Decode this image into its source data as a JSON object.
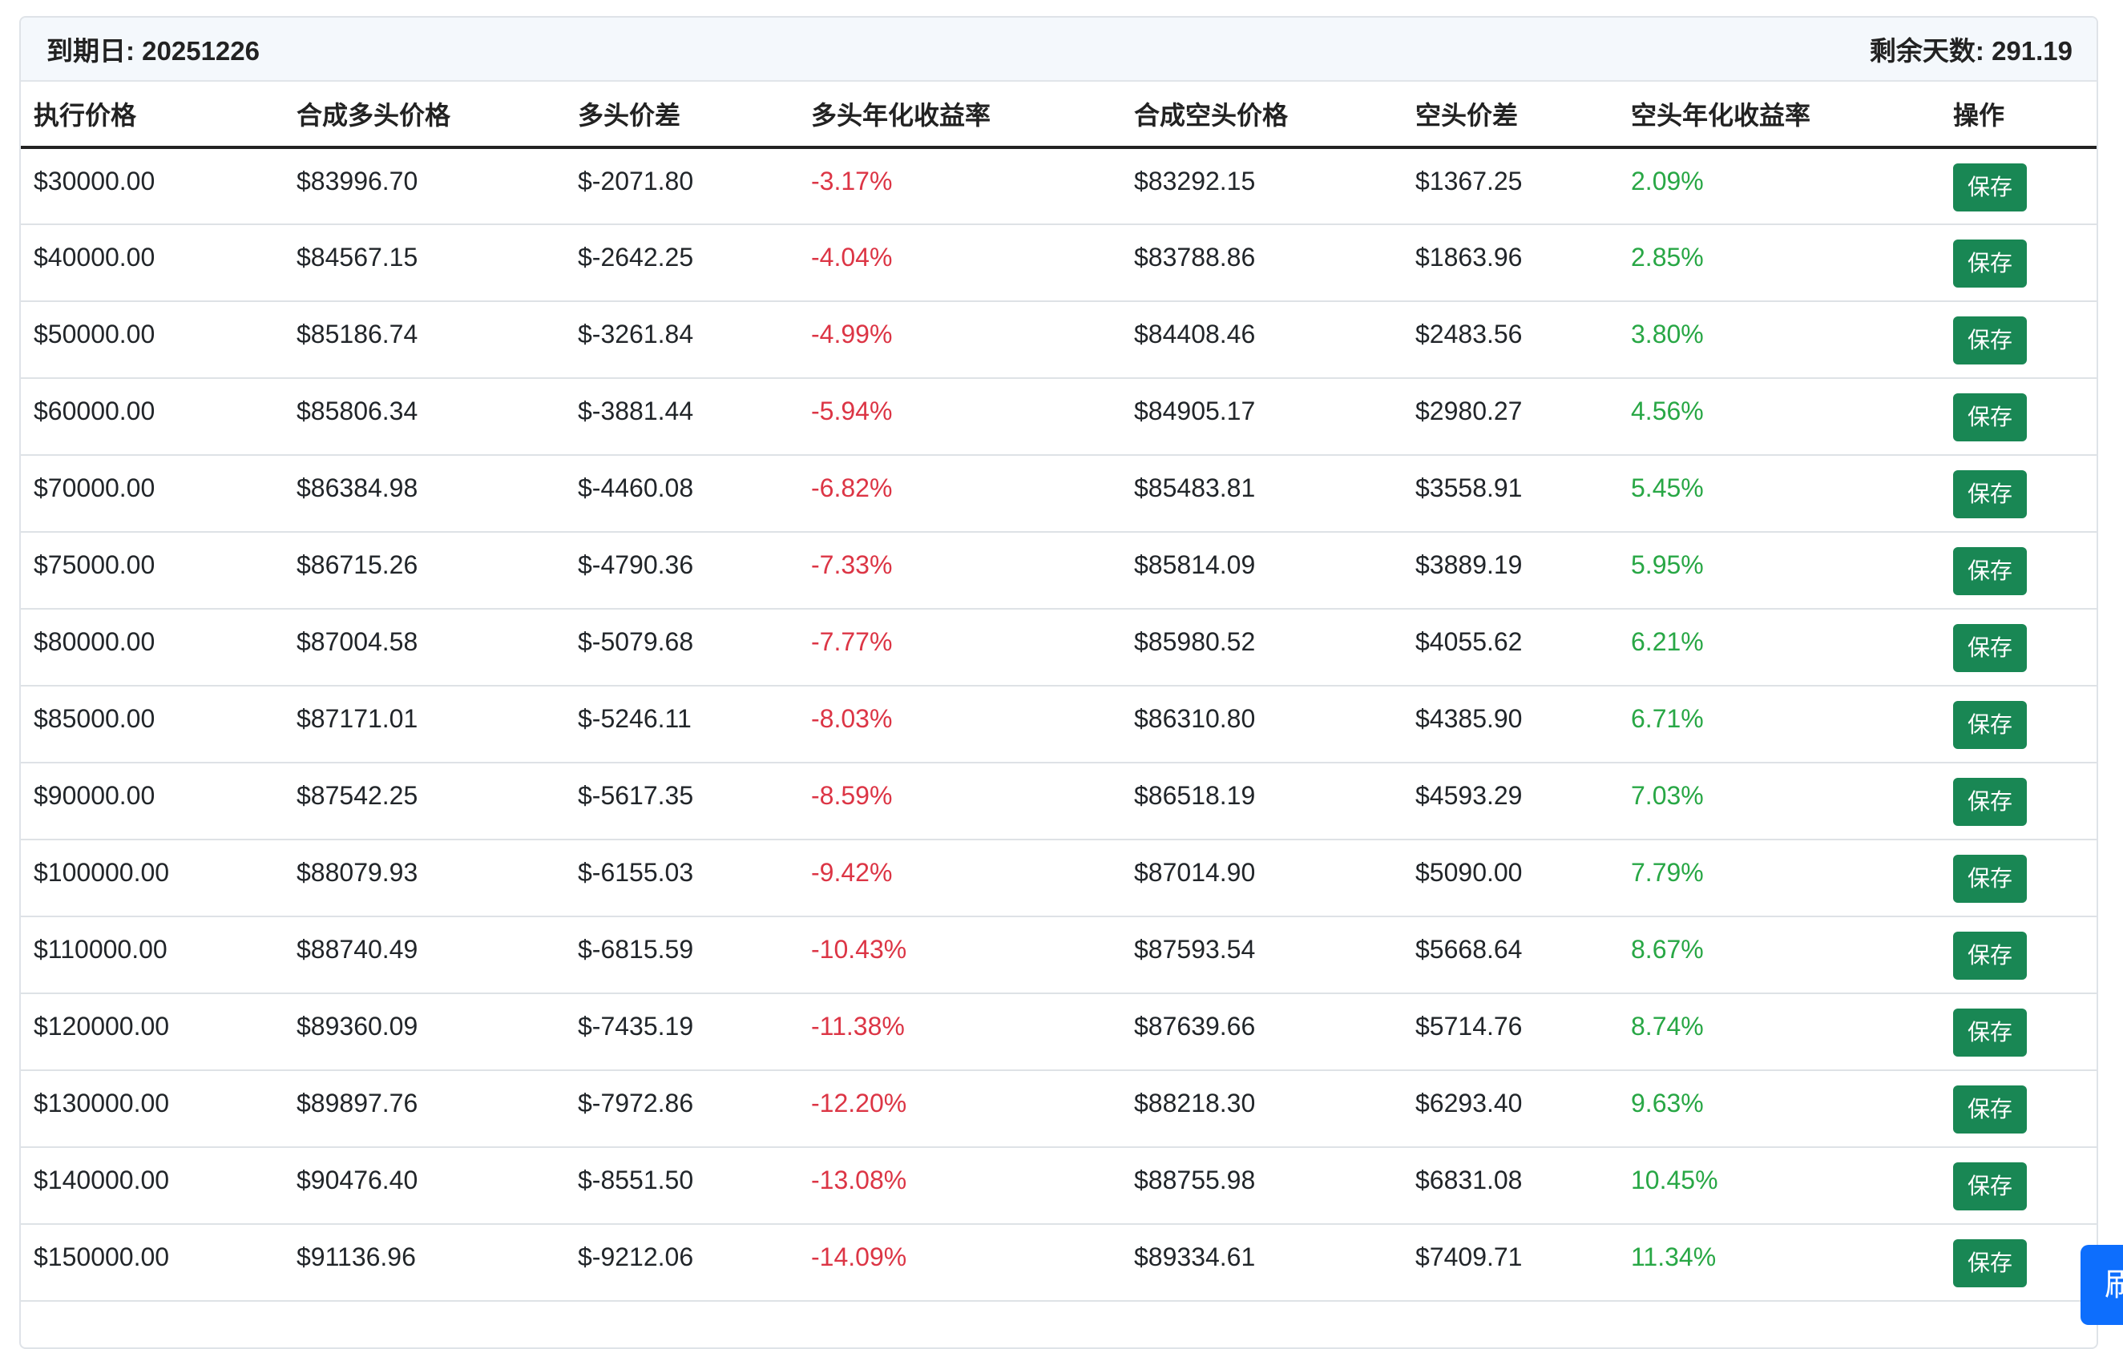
{
  "header": {
    "expiry": "到期日: 20251226",
    "days_left": "剩余天数: 291.19"
  },
  "columns": [
    "执行价格",
    "合成多头价格",
    "多头价差",
    "多头年化收益率",
    "合成空头价格",
    "空头价差",
    "空头年化收益率",
    "操作"
  ],
  "rows": [
    {
      "strike": "$30000.00",
      "long_price": "$83996.70",
      "long_spread": "$-2071.80",
      "long_yield": "-3.17%",
      "short_price": "$83292.15",
      "short_spread": "$1367.25",
      "short_yield": "2.09%",
      "action": "保存"
    },
    {
      "strike": "$40000.00",
      "long_price": "$84567.15",
      "long_spread": "$-2642.25",
      "long_yield": "-4.04%",
      "short_price": "$83788.86",
      "short_spread": "$1863.96",
      "short_yield": "2.85%",
      "action": "保存"
    },
    {
      "strike": "$50000.00",
      "long_price": "$85186.74",
      "long_spread": "$-3261.84",
      "long_yield": "-4.99%",
      "short_price": "$84408.46",
      "short_spread": "$2483.56",
      "short_yield": "3.80%",
      "action": "保存"
    },
    {
      "strike": "$60000.00",
      "long_price": "$85806.34",
      "long_spread": "$-3881.44",
      "long_yield": "-5.94%",
      "short_price": "$84905.17",
      "short_spread": "$2980.27",
      "short_yield": "4.56%",
      "action": "保存"
    },
    {
      "strike": "$70000.00",
      "long_price": "$86384.98",
      "long_spread": "$-4460.08",
      "long_yield": "-6.82%",
      "short_price": "$85483.81",
      "short_spread": "$3558.91",
      "short_yield": "5.45%",
      "action": "保存"
    },
    {
      "strike": "$75000.00",
      "long_price": "$86715.26",
      "long_spread": "$-4790.36",
      "long_yield": "-7.33%",
      "short_price": "$85814.09",
      "short_spread": "$3889.19",
      "short_yield": "5.95%",
      "action": "保存"
    },
    {
      "strike": "$80000.00",
      "long_price": "$87004.58",
      "long_spread": "$-5079.68",
      "long_yield": "-7.77%",
      "short_price": "$85980.52",
      "short_spread": "$4055.62",
      "short_yield": "6.21%",
      "action": "保存"
    },
    {
      "strike": "$85000.00",
      "long_price": "$87171.01",
      "long_spread": "$-5246.11",
      "long_yield": "-8.03%",
      "short_price": "$86310.80",
      "short_spread": "$4385.90",
      "short_yield": "6.71%",
      "action": "保存"
    },
    {
      "strike": "$90000.00",
      "long_price": "$87542.25",
      "long_spread": "$-5617.35",
      "long_yield": "-8.59%",
      "short_price": "$86518.19",
      "short_spread": "$4593.29",
      "short_yield": "7.03%",
      "action": "保存"
    },
    {
      "strike": "$100000.00",
      "long_price": "$88079.93",
      "long_spread": "$-6155.03",
      "long_yield": "-9.42%",
      "short_price": "$87014.90",
      "short_spread": "$5090.00",
      "short_yield": "7.79%",
      "action": "保存"
    },
    {
      "strike": "$110000.00",
      "long_price": "$88740.49",
      "long_spread": "$-6815.59",
      "long_yield": "-10.43%",
      "short_price": "$87593.54",
      "short_spread": "$5668.64",
      "short_yield": "8.67%",
      "action": "保存"
    },
    {
      "strike": "$120000.00",
      "long_price": "$89360.09",
      "long_spread": "$-7435.19",
      "long_yield": "-11.38%",
      "short_price": "$87639.66",
      "short_spread": "$5714.76",
      "short_yield": "8.74%",
      "action": "保存"
    },
    {
      "strike": "$130000.00",
      "long_price": "$89897.76",
      "long_spread": "$-7972.86",
      "long_yield": "-12.20%",
      "short_price": "$88218.30",
      "short_spread": "$6293.40",
      "short_yield": "9.63%",
      "action": "保存"
    },
    {
      "strike": "$140000.00",
      "long_price": "$90476.40",
      "long_spread": "$-8551.50",
      "long_yield": "-13.08%",
      "short_price": "$88755.98",
      "short_spread": "$6831.08",
      "short_yield": "10.45%",
      "action": "保存"
    },
    {
      "strike": "$150000.00",
      "long_price": "$91136.96",
      "long_spread": "$-9212.06",
      "long_yield": "-14.09%",
      "short_price": "$89334.61",
      "short_spread": "$7409.71",
      "short_yield": "11.34%",
      "action": "保存"
    }
  ],
  "float_button": {
    "label": "刷"
  },
  "colors": {
    "negative": "#dc3545",
    "positive": "#28a745",
    "save_button": "#198754",
    "float_button": "#0d6efd"
  }
}
